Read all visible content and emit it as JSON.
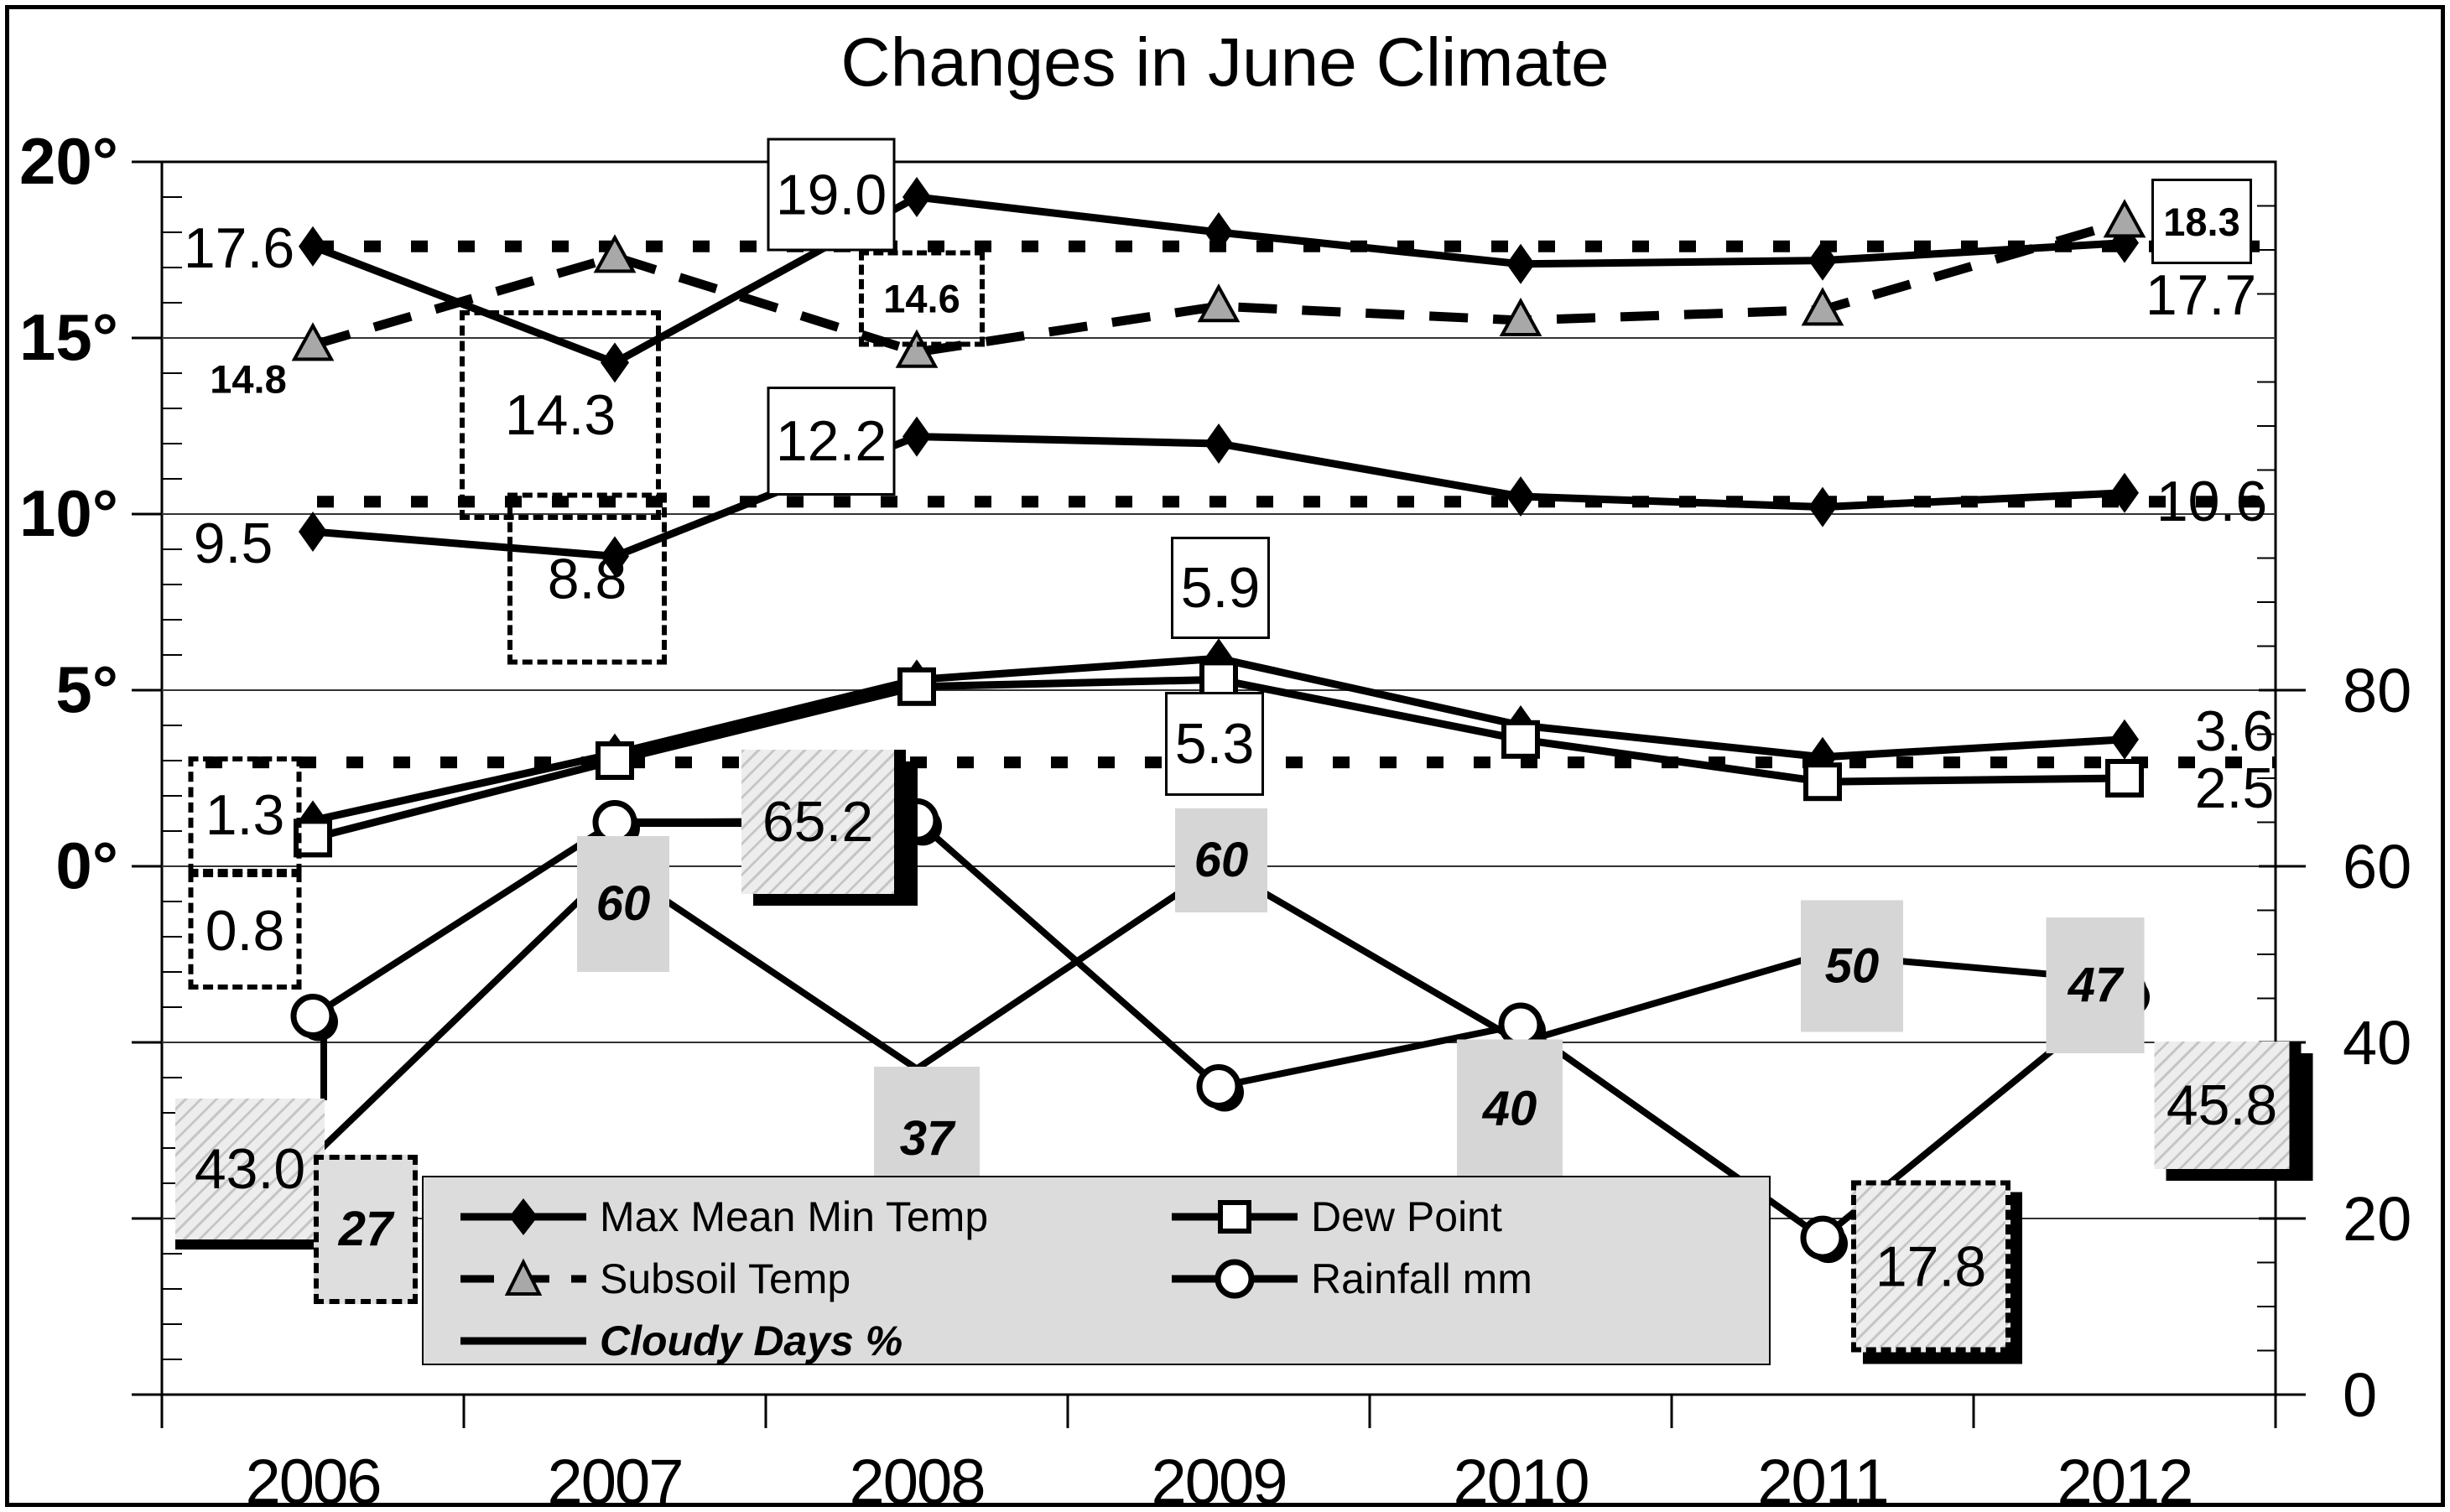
{
  "title": "Changes in June Climate",
  "axes": {
    "left": {
      "tick_labels": [
        "20°",
        "15°",
        "10°",
        "5°",
        "0°"
      ],
      "tick_values": [
        20,
        15,
        10,
        5,
        0
      ],
      "range": [
        -15,
        20
      ],
      "minor_step": 1,
      "unit": "degrees"
    },
    "right": {
      "tick_labels": [
        "80",
        "60",
        "40",
        "20",
        "0"
      ],
      "tick_values": [
        80,
        60,
        40,
        20,
        0
      ],
      "range": [
        0,
        140
      ],
      "minor_step": 5,
      "unit": "mm / %"
    },
    "x": {
      "tick_labels": [
        "2006",
        "2007",
        "2008",
        "2009",
        "2010",
        "2011",
        "2012"
      ]
    }
  },
  "legend": {
    "items": [
      {
        "key": "maxmeanmin",
        "label": "Max Mean Min Temp",
        "marker": "diamond",
        "line": "solid",
        "italic": false
      },
      {
        "key": "dew",
        "label": "Dew Point",
        "marker": "square",
        "line": "solid",
        "italic": false
      },
      {
        "key": "subsoil",
        "label": "Subsoil Temp",
        "marker": "triangle",
        "line": "dashed",
        "italic": false
      },
      {
        "key": "rain",
        "label": "Rainfall mm",
        "marker": "circle",
        "line": "solid",
        "italic": false
      },
      {
        "key": "cloudy",
        "label": "Cloudy Days %",
        "marker": "none",
        "line": "solid",
        "italic": true
      }
    ]
  },
  "chart_data": {
    "type": "line",
    "title": "Changes in June Climate",
    "x": [
      2006,
      2007,
      2008,
      2009,
      2010,
      2011,
      2012
    ],
    "grid": true,
    "legend_position": "bottom-left",
    "series": [
      {
        "name": "Max Temp (Max Mean Min Temp)",
        "axis": "left",
        "marker": "diamond",
        "line": "solid",
        "values": [
          17.6,
          14.3,
          19.0,
          18.0,
          17.1,
          17.2,
          17.7
        ]
      },
      {
        "name": "Mean Temp (Max Mean Min Temp)",
        "axis": "left",
        "marker": "diamond",
        "line": "solid",
        "values": [
          9.5,
          8.8,
          12.2,
          12.0,
          10.5,
          10.2,
          10.6
        ]
      },
      {
        "name": "Min Temp (Max Mean Min Temp)",
        "axis": "left",
        "marker": "diamond",
        "line": "solid",
        "values": [
          1.3,
          3.2,
          5.3,
          5.9,
          4.0,
          3.1,
          3.6
        ]
      },
      {
        "name": "Dew Point",
        "axis": "left",
        "marker": "square",
        "line": "solid",
        "values": [
          0.8,
          3.0,
          5.1,
          5.3,
          3.6,
          2.4,
          2.5
        ]
      },
      {
        "name": "Subsoil Temp",
        "axis": "left",
        "marker": "triangle",
        "line": "dashed",
        "values": [
          14.8,
          17.3,
          14.6,
          15.9,
          15.5,
          15.8,
          18.3
        ]
      },
      {
        "name": "Rainfall mm",
        "axis": "right",
        "marker": "circle",
        "line": "solid",
        "values": [
          43.0,
          65.0,
          65.2,
          35.0,
          42.0,
          17.8,
          45.8
        ]
      },
      {
        "name": "Cloudy Days %",
        "axis": "right",
        "marker": "none",
        "line": "solid",
        "values": [
          27,
          60,
          37,
          60,
          40,
          50,
          47
        ]
      }
    ],
    "reference_lines": [
      {
        "axis": "left",
        "value": 17.6,
        "style": "heavy-dotted"
      },
      {
        "axis": "left",
        "value": 10.35,
        "style": "heavy-dotted"
      },
      {
        "axis": "left",
        "value": 2.95,
        "style": "heavy-dotted"
      }
    ],
    "ylim_left": [
      -15,
      20
    ],
    "ylim_right": [
      0,
      140
    ]
  },
  "data_labels": [
    {
      "id": "t17_6",
      "series": "Max Temp",
      "year": 2006,
      "value": 17.6,
      "text": "17.6",
      "style": "plain"
    },
    {
      "id": "t14_8",
      "series": "Subsoil Temp",
      "year": 2006,
      "value": 14.8,
      "text": "14.8",
      "style": "plain-smallbold"
    },
    {
      "id": "t9_5",
      "series": "Mean Temp",
      "year": 2006,
      "value": 9.5,
      "text": "9.5",
      "style": "plain"
    },
    {
      "id": "d14_3",
      "series": "Max Temp",
      "year": 2007,
      "value": 14.3,
      "text": "14.3",
      "style": "dotted-box"
    },
    {
      "id": "d8_8",
      "series": "Mean Temp",
      "year": 2007,
      "value": 8.8,
      "text": "8.8",
      "style": "dotted-box"
    },
    {
      "id": "b19_0",
      "series": "Max Temp",
      "year": 2008,
      "value": 19.0,
      "text": "19.0",
      "style": "white-box"
    },
    {
      "id": "b12_2",
      "series": "Mean Temp",
      "year": 2008,
      "value": 12.2,
      "text": "12.2",
      "style": "white-box"
    },
    {
      "id": "d14_6",
      "series": "Subsoil Temp",
      "year": 2008,
      "value": 14.6,
      "text": "14.6",
      "style": "dotted-box-smallbold"
    },
    {
      "id": "d1_3",
      "series": "Min Temp",
      "year": 2006,
      "value": 1.3,
      "text": "1.3",
      "style": "dotted-box"
    },
    {
      "id": "d0_8",
      "series": "Dew Point",
      "year": 2006,
      "value": 0.8,
      "text": "0.8",
      "style": "dotted-box"
    },
    {
      "id": "b5_9",
      "series": "Min Temp",
      "year": 2009,
      "value": 5.9,
      "text": "5.9",
      "style": "white-box"
    },
    {
      "id": "b5_3",
      "series": "Dew Point",
      "year": 2009,
      "value": 5.3,
      "text": "5.3",
      "style": "white-box"
    },
    {
      "id": "b18_3",
      "series": "Subsoil Temp",
      "year": 2012,
      "value": 18.3,
      "text": "18.3",
      "style": "white-box-smallbold"
    },
    {
      "id": "t17_7",
      "series": "Max Temp",
      "year": 2012,
      "value": 17.7,
      "text": "17.7",
      "style": "plain"
    },
    {
      "id": "t10_6",
      "series": "Mean Temp",
      "year": 2012,
      "value": 10.6,
      "text": "10.6",
      "style": "plain"
    },
    {
      "id": "t3_6",
      "series": "Min Temp",
      "year": 2012,
      "value": 3.6,
      "text": "3.6",
      "style": "plain"
    },
    {
      "id": "t2_5",
      "series": "Dew Point",
      "year": 2012,
      "value": 2.5,
      "text": "2.5",
      "style": "plain"
    },
    {
      "id": "h43_0",
      "series": "Rainfall mm",
      "year": 2006,
      "value": 43.0,
      "text": "43.0",
      "style": "hatch-box-underline"
    },
    {
      "id": "h65_2",
      "series": "Rainfall mm",
      "year": 2008,
      "value": 65.2,
      "text": "65.2",
      "style": "hatch-box-accent-shadow"
    },
    {
      "id": "h17_8",
      "series": "Rainfall mm",
      "year": 2011,
      "value": 17.8,
      "text": "17.8",
      "style": "hatch-box-dashed-shadow"
    },
    {
      "id": "h45_8",
      "series": "Rainfall mm",
      "year": 2012,
      "value": 45.8,
      "text": "45.8",
      "style": "hatch-box-accent-shadow"
    },
    {
      "id": "g27",
      "series": "Cloudy Days %",
      "year": 2006,
      "value": 27,
      "text": "27",
      "style": "gray-dotted-box-italic"
    },
    {
      "id": "g60a",
      "series": "Cloudy Days %",
      "year": 2007,
      "value": 60,
      "text": "60",
      "style": "gray-box-italic"
    },
    {
      "id": "g37",
      "series": "Cloudy Days %",
      "year": 2008,
      "value": 37,
      "text": "37",
      "style": "gray-box-italic"
    },
    {
      "id": "g60b",
      "series": "Cloudy Days %",
      "year": 2009,
      "value": 60,
      "text": "60",
      "style": "gray-box-italic"
    },
    {
      "id": "g40",
      "series": "Cloudy Days %",
      "year": 2010,
      "value": 40,
      "text": "40",
      "style": "gray-box-italic"
    },
    {
      "id": "g50",
      "series": "Cloudy Days %",
      "year": 2011,
      "value": 50,
      "text": "50",
      "style": "gray-box-italic"
    },
    {
      "id": "g47",
      "series": "Cloudy Days %",
      "year": 2012,
      "value": 47,
      "text": "47",
      "style": "gray-box-italic"
    }
  ],
  "colors": {
    "foreground": "#000000",
    "subsoil_marker_fill": "#a8a8a8",
    "legend_background": "#dcdcdc",
    "cloudy_label_background": "#d6d6d6"
  }
}
